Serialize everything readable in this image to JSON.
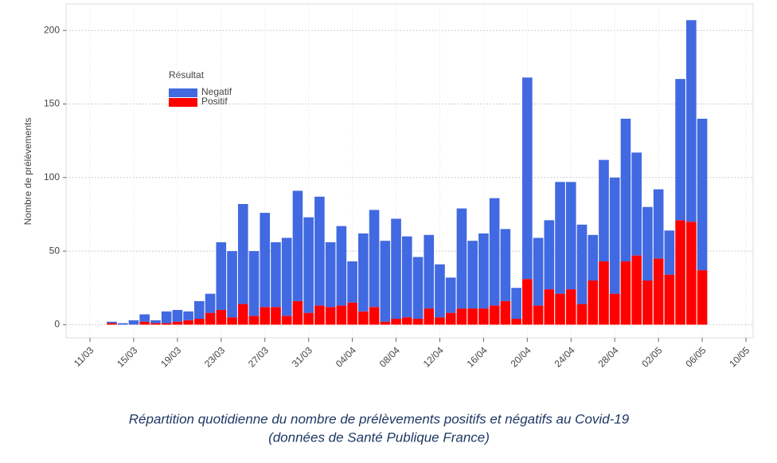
{
  "chart_data": {
    "type": "stacked-bar",
    "y_label": "Nombre de prélèvements",
    "legend_title": "Résultat",
    "caption": [
      "Répartition quotidienne du nombre de prélèvements positifs et négatifs au Covid-19",
      "(données de Santé Publique France)"
    ],
    "categories": [
      "11/03",
      null,
      null,
      null,
      "15/03",
      null,
      null,
      null,
      "19/03",
      null,
      null,
      null,
      "23/03",
      null,
      null,
      null,
      "27/03",
      null,
      null,
      null,
      "31/03",
      null,
      null,
      null,
      "04/04",
      null,
      null,
      null,
      "08/04",
      null,
      null,
      null,
      "12/04",
      null,
      null,
      null,
      "16/04",
      null,
      null,
      null,
      "20/04",
      null,
      null,
      null,
      "24/04",
      null,
      null,
      null,
      "28/04",
      null,
      null,
      null,
      "02/05",
      null,
      null,
      null,
      "06/05",
      null,
      null,
      null,
      "10/05"
    ],
    "series": [
      {
        "name": "Negatif",
        "color": "#4169e1",
        "values": [
          null,
          null,
          1,
          1,
          3,
          5,
          2,
          8,
          8,
          6,
          12,
          13,
          46,
          45,
          68,
          44,
          64,
          44,
          53,
          75,
          65,
          74,
          44,
          54,
          28,
          53,
          66,
          55,
          68,
          55,
          42,
          50,
          36,
          24,
          68,
          46,
          51,
          73,
          49,
          21,
          137,
          46,
          47,
          76,
          73,
          54,
          31,
          69,
          79,
          97,
          70,
          50,
          47,
          30,
          96,
          137,
          103,
          null,
          null,
          null,
          null
        ]
      },
      {
        "name": "Positif",
        "color": "#ff0000",
        "values": [
          null,
          null,
          1,
          0,
          0,
          2,
          1,
          1,
          2,
          3,
          4,
          8,
          10,
          5,
          14,
          6,
          12,
          12,
          6,
          16,
          8,
          13,
          12,
          13,
          15,
          9,
          12,
          2,
          4,
          5,
          4,
          11,
          5,
          8,
          11,
          11,
          11,
          13,
          16,
          4,
          31,
          13,
          24,
          21,
          24,
          14,
          30,
          43,
          21,
          43,
          47,
          30,
          45,
          34,
          71,
          70,
          37,
          null,
          null,
          null,
          null
        ]
      }
    ],
    "ylim": [
      -9,
      218
    ],
    "yticks": [
      0,
      50,
      100,
      150,
      200
    ],
    "grid": true
  }
}
